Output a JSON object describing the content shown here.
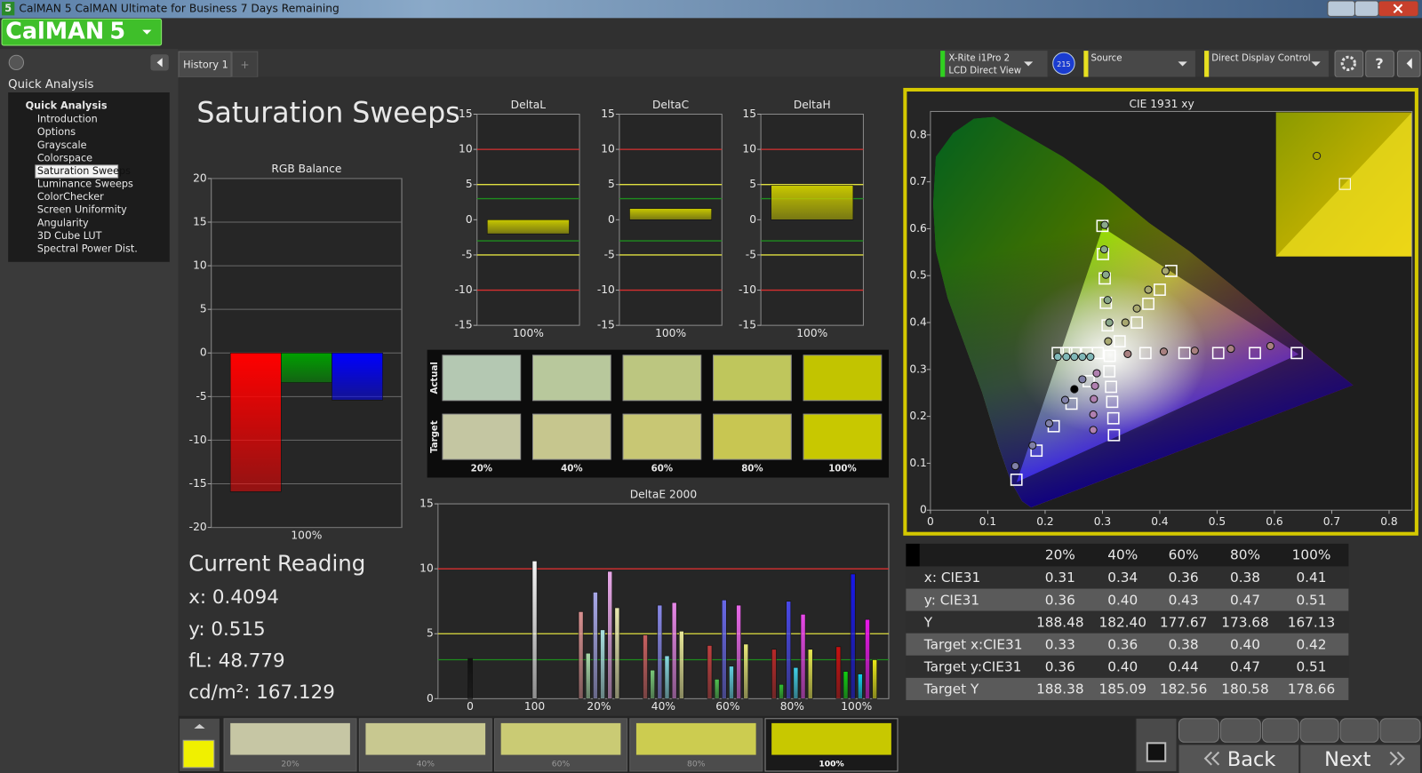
{
  "window": {
    "title": "CalMAN 5 CalMAN Ultimate for Business 7 Days Remaining",
    "logo": "CalMAN",
    "logo_version": "5"
  },
  "sidebar": {
    "heading": "Quick Analysis",
    "tree_root": "Quick Analysis",
    "items": [
      "Introduction",
      "Options",
      "Grayscale",
      "Colorspace",
      "Saturation Sweeps",
      "Luminance Sweeps",
      "ColorChecker",
      "Screen Uniformity",
      "Angularity",
      "3D Cube LUT",
      "Spectral Power Dist."
    ],
    "selected_item": 4
  },
  "tab": "History 1",
  "toolbar": {
    "meter_name": "X-Rite i1Pro 2",
    "meter_mode": "LCD Direct View",
    "meter_badge": "215",
    "source": "Source",
    "display_control": "Direct Display Control"
  },
  "page_title": "Saturation Sweeps",
  "chart_data": [
    {
      "type": "bar",
      "title": "RGB Balance",
      "categories": [
        "100%"
      ],
      "series": [
        {
          "color": "#ff0000",
          "values": [
            -15.9
          ]
        },
        {
          "color": "#00a000",
          "values": [
            -3.4
          ]
        },
        {
          "color": "#0000ff",
          "values": [
            -5.4
          ]
        }
      ],
      "ylim": [
        -20,
        20
      ],
      "yticks": [
        -20,
        -15,
        -10,
        -5,
        0,
        5,
        10,
        15,
        20
      ],
      "grid": true
    },
    {
      "type": "bar",
      "title": "DeltaL",
      "categories": [
        "100%"
      ],
      "series": [
        {
          "color": "#c8c800",
          "values": [
            -2.0
          ]
        }
      ],
      "ylim": [
        -15,
        15
      ],
      "yticks": [
        -15,
        -10,
        -5,
        0,
        5,
        10,
        15
      ],
      "grid": false,
      "reference_lines": [
        {
          "value": 10,
          "color": "#d83030"
        },
        {
          "value": -10,
          "color": "#d83030"
        },
        {
          "value": 5,
          "color": "#e0e040"
        },
        {
          "value": -5,
          "color": "#e0e040"
        },
        {
          "value": 3,
          "color": "#1e8c1e"
        },
        {
          "value": -3,
          "color": "#1e8c1e"
        }
      ]
    },
    {
      "type": "bar",
      "title": "DeltaC",
      "categories": [
        "100%"
      ],
      "series": [
        {
          "color": "#c8c800",
          "values": [
            1.6
          ]
        }
      ],
      "ylim": [
        -15,
        15
      ],
      "yticks": [
        -15,
        -10,
        -5,
        0,
        5,
        10,
        15
      ],
      "grid": false,
      "reference_lines": [
        {
          "value": 10,
          "color": "#d83030"
        },
        {
          "value": -10,
          "color": "#d83030"
        },
        {
          "value": 5,
          "color": "#e0e040"
        },
        {
          "value": -5,
          "color": "#e0e040"
        },
        {
          "value": 3,
          "color": "#1e8c1e"
        },
        {
          "value": -3,
          "color": "#1e8c1e"
        }
      ]
    },
    {
      "type": "bar",
      "title": "DeltaH",
      "categories": [
        "100%"
      ],
      "series": [
        {
          "color": "#c8c800",
          "values": [
            4.9
          ]
        }
      ],
      "ylim": [
        -15,
        15
      ],
      "yticks": [
        -15,
        -10,
        -5,
        0,
        5,
        10,
        15
      ],
      "grid": false,
      "reference_lines": [
        {
          "value": 10,
          "color": "#d83030"
        },
        {
          "value": -10,
          "color": "#d83030"
        },
        {
          "value": 5,
          "color": "#e0e040"
        },
        {
          "value": -5,
          "color": "#e0e040"
        },
        {
          "value": 3,
          "color": "#1e8c1e"
        },
        {
          "value": -3,
          "color": "#1e8c1e"
        }
      ]
    },
    {
      "type": "bar",
      "title": "DeltaE 2000",
      "categories": [
        "0",
        "100",
        "20%",
        "40%",
        "60%",
        "80%",
        "100%"
      ],
      "series": [
        {
          "color": "#111111",
          "values": [
            3.1,
            null,
            null,
            null,
            null,
            null,
            null
          ]
        },
        {
          "color": "#f4f4f4",
          "values": [
            null,
            10.6,
            null,
            null,
            null,
            null,
            null
          ]
        },
        {
          "colors": [
            null,
            null,
            "#d89090",
            "#c86060",
            "#c04040",
            "#b82828",
            "#c81010"
          ],
          "values": [
            null,
            null,
            6.7,
            4.9,
            4.1,
            3.8,
            4.0
          ]
        },
        {
          "colors": [
            null,
            null,
            "#a8d8a8",
            "#78c878",
            "#50c050",
            "#30c030",
            "#10d010"
          ],
          "values": [
            null,
            null,
            3.5,
            2.2,
            1.5,
            1.1,
            2.1
          ]
        },
        {
          "colors": [
            null,
            null,
            "#a8a8e8",
            "#8888e8",
            "#6868e8",
            "#4848e8",
            "#1818e8"
          ],
          "values": [
            null,
            null,
            8.2,
            7.2,
            7.6,
            7.5,
            9.6
          ]
        },
        {
          "colors": [
            null,
            null,
            "#a8e0e0",
            "#88d8e0",
            "#60d0e0",
            "#40d0e8",
            "#10d0f0"
          ],
          "values": [
            null,
            null,
            5.3,
            3.3,
            2.5,
            2.4,
            1.9
          ]
        },
        {
          "colors": [
            null,
            null,
            "#e8a8e8",
            "#e888e8",
            "#e868e8",
            "#e848e8",
            "#e818e8"
          ],
          "values": [
            null,
            null,
            9.8,
            7.4,
            7.2,
            6.5,
            6.1
          ]
        },
        {
          "colors": [
            null,
            null,
            "#e8e8b0",
            "#e8e898",
            "#e8e878",
            "#e8e850",
            "#e8e818"
          ],
          "values": [
            null,
            null,
            7.0,
            5.2,
            4.2,
            3.8,
            3.0
          ]
        }
      ],
      "ylim": [
        0,
        15
      ],
      "yticks": [
        0,
        5,
        10,
        15
      ],
      "grid": false,
      "reference_lines": [
        {
          "value": 10,
          "color": "#d83030"
        },
        {
          "value": 5,
          "color": "#e0e040"
        },
        {
          "value": 3,
          "color": "#1e8c1e"
        }
      ]
    },
    {
      "type": "scatter",
      "title": "CIE 1931 xy",
      "xlim": [
        0,
        0.84
      ],
      "ylim": [
        0,
        0.85
      ],
      "xticks": [
        0,
        0.1,
        0.2,
        0.3,
        0.4,
        0.5,
        0.6,
        0.7,
        0.8
      ],
      "yticks": [
        0,
        0.1,
        0.2,
        0.3,
        0.4,
        0.5,
        0.6,
        0.7,
        0.8
      ],
      "series": [
        {
          "marker": "square",
          "color": "#ffffff",
          "x": [
            0.309,
            0.306,
            0.304,
            0.301,
            0.3
          ],
          "y": [
            0.394,
            0.442,
            0.494,
            0.546,
            0.606
          ]
        },
        {
          "marker": "square",
          "color": "#ffffff",
          "x": [
            0.375,
            0.443,
            0.502,
            0.566,
            0.639
          ],
          "y": [
            0.335,
            0.335,
            0.335,
            0.335,
            0.335
          ]
        },
        {
          "marker": "square",
          "color": "#ffffff",
          "x": [
            0.276,
            0.246,
            0.215,
            0.185,
            0.15
          ],
          "y": [
            0.275,
            0.227,
            0.179,
            0.127,
            0.065
          ]
        },
        {
          "marker": "square",
          "color": "#ffffff",
          "x": [
            0.292,
            0.273,
            0.252,
            0.237,
            0.222
          ],
          "y": [
            0.335,
            0.335,
            0.335,
            0.335,
            0.335
          ]
        },
        {
          "marker": "square",
          "color": "#ffffff",
          "x": [
            0.312,
            0.315,
            0.317,
            0.319,
            0.32
          ],
          "y": [
            0.296,
            0.263,
            0.231,
            0.196,
            0.16
          ]
        },
        {
          "marker": "square",
          "color": "#ffffff",
          "x": [
            0.33,
            0.36,
            0.38,
            0.4,
            0.42
          ],
          "y": [
            0.36,
            0.4,
            0.44,
            0.47,
            0.51
          ]
        },
        {
          "marker": "square",
          "color": "#ffffff",
          "x": [
            0.3127
          ],
          "y": [
            0.329
          ]
        },
        {
          "marker": "circle",
          "color": "#8aa88a",
          "x": [
            0.312,
            0.309,
            0.306,
            0.303,
            0.304
          ],
          "y": [
            0.4,
            0.448,
            0.502,
            0.556,
            0.608
          ]
        },
        {
          "marker": "circle",
          "color": "#a88080",
          "x": [
            0.344,
            0.407,
            0.461,
            0.524,
            0.593
          ],
          "y": [
            0.333,
            0.338,
            0.34,
            0.344,
            0.35
          ]
        },
        {
          "marker": "circle",
          "color": "#8080a8",
          "x": [
            0.265,
            0.235,
            0.207,
            0.178,
            0.148
          ],
          "y": [
            0.279,
            0.235,
            0.185,
            0.138,
            0.094
          ]
        },
        {
          "marker": "circle",
          "color": "#80b8b8",
          "x": [
            0.279,
            0.265,
            0.251,
            0.237,
            0.222
          ],
          "y": [
            0.327,
            0.327,
            0.327,
            0.327,
            0.327
          ]
        },
        {
          "marker": "circle",
          "color": "#b080b0",
          "x": [
            0.29,
            0.287,
            0.285,
            0.284,
            0.284
          ],
          "y": [
            0.292,
            0.265,
            0.237,
            0.204,
            0.171
          ]
        },
        {
          "marker": "circle",
          "color": "#a8a870",
          "x": [
            0.31,
            0.34,
            0.36,
            0.38,
            0.41
          ],
          "y": [
            0.36,
            0.4,
            0.43,
            0.47,
            0.51
          ]
        },
        {
          "marker": "circle",
          "color": "#000000",
          "x": [
            0.251
          ],
          "y": [
            0.258
          ]
        }
      ]
    }
  ],
  "swatches": {
    "row_labels": [
      "Actual",
      "Target"
    ],
    "columns": [
      "20%",
      "40%",
      "60%",
      "80%",
      "100%"
    ],
    "actual_colors": [
      "#b4c8b2",
      "#b8c89c",
      "#bcc680",
      "#bfc65c",
      "#c2c400"
    ],
    "target_colors": [
      "#c4c6a2",
      "#c6c68e",
      "#c8c774",
      "#c8c652",
      "#c8c800"
    ]
  },
  "table": {
    "columns": [
      "20%",
      "40%",
      "60%",
      "80%",
      "100%"
    ],
    "rows": [
      {
        "label": "x: CIE31",
        "cells": [
          "0.31",
          "0.34",
          "0.36",
          "0.38",
          "0.41"
        ]
      },
      {
        "label": "y: CIE31",
        "cells": [
          "0.36",
          "0.40",
          "0.43",
          "0.47",
          "0.51"
        ]
      },
      {
        "label": "Y",
        "cells": [
          "188.48",
          "182.40",
          "177.67",
          "173.68",
          "167.13"
        ]
      },
      {
        "label": "Target x:CIE31",
        "cells": [
          "0.33",
          "0.36",
          "0.38",
          "0.40",
          "0.42"
        ]
      },
      {
        "label": "Target y:CIE31",
        "cells": [
          "0.36",
          "0.40",
          "0.44",
          "0.47",
          "0.51"
        ]
      },
      {
        "label": "Target Y",
        "cells": [
          "188.38",
          "185.09",
          "182.56",
          "180.58",
          "178.66"
        ]
      }
    ]
  },
  "current_reading": {
    "title": "Current Reading",
    "lines": [
      "x: 0.4094",
      "y: 0.515",
      "fL: 48.779",
      "cd/m²: 167.129"
    ]
  },
  "footer": {
    "swatch_labels": [
      "20%",
      "40%",
      "60%",
      "80%",
      "100%"
    ],
    "swatch_colors": [
      "#c6c6a4",
      "#c8c890",
      "#cacb74",
      "#cccc50",
      "#c8c800"
    ],
    "selected": 4,
    "back": "Back",
    "next": "Next"
  }
}
